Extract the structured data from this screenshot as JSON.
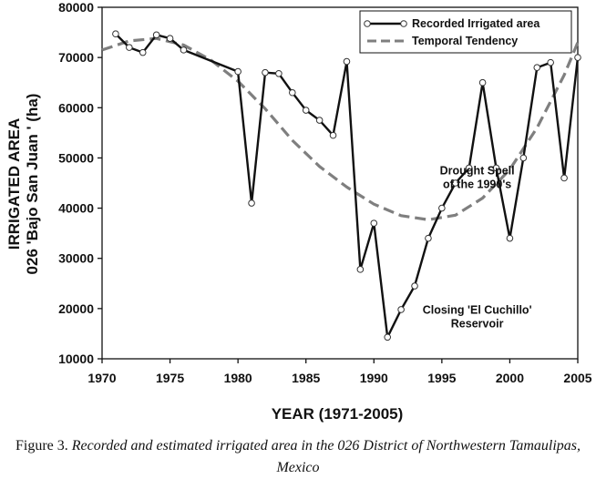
{
  "chart_data": {
    "type": "line",
    "xlabel": "YEAR (1971-2005)",
    "ylabel_line1": "IRRIGATED AREA",
    "ylabel_line2": "026 'Bajo San Juan ' (ha)",
    "xlim": [
      1970,
      2005
    ],
    "ylim": [
      10000,
      80000
    ],
    "xticks": [
      1970,
      1975,
      1980,
      1985,
      1990,
      1995,
      2000,
      2005
    ],
    "yticks": [
      10000,
      20000,
      30000,
      40000,
      50000,
      60000,
      70000,
      80000
    ],
    "legend_position": "top-right",
    "series": [
      {
        "name": "Recorded Irrigated area",
        "style": "solid-markers",
        "x": [
          1971,
          1972,
          1973,
          1974,
          1975,
          1976,
          1980,
          1981,
          1982,
          1983,
          1984,
          1985,
          1986,
          1987,
          1988,
          1989,
          1990,
          1991,
          1992,
          1993,
          1994,
          1995,
          1996,
          1997,
          1998,
          1999,
          2000,
          2001,
          2002,
          2003,
          2004,
          2005
        ],
        "values": [
          74700,
          72000,
          71000,
          74500,
          73800,
          71500,
          67200,
          41000,
          67000,
          66800,
          63000,
          59500,
          57500,
          54500,
          69200,
          27800,
          37000,
          14300,
          19800,
          24500,
          34000,
          40000,
          45000,
          48000,
          65000,
          48000,
          34000,
          50000,
          68000,
          69000,
          46000,
          70000
        ]
      },
      {
        "name": "Temporal Tendency",
        "style": "dashed",
        "x": [
          1970,
          1972,
          1974,
          1976,
          1978,
          1980,
          1982,
          1984,
          1986,
          1988,
          1990,
          1992,
          1994,
          1996,
          1998,
          2000,
          2002,
          2004,
          2005
        ],
        "values": [
          71500,
          73300,
          73800,
          72500,
          69500,
          65300,
          59800,
          53500,
          48300,
          44200,
          40800,
          38500,
          37700,
          38600,
          42000,
          47700,
          56000,
          66500,
          73000
        ]
      }
    ],
    "annotations": [
      {
        "id": "drought",
        "lines": [
          "Drought Spell",
          "of the 1990's"
        ],
        "x": 1997.6,
        "y": 46700
      },
      {
        "id": "reservoir",
        "lines": [
          "Closing 'El Cuchillo'",
          "Reservoir"
        ],
        "x": 1997.6,
        "y": 19000
      }
    ],
    "colors": {
      "recorded": "#111111",
      "tendency": "#7f7f7f",
      "marker_fill": "#ffffff"
    }
  },
  "caption": {
    "lead": "Figure 3.",
    "text": "Recorded and estimated irrigated area in the 026 District of Northwestern Tamaulipas, Mexico"
  }
}
